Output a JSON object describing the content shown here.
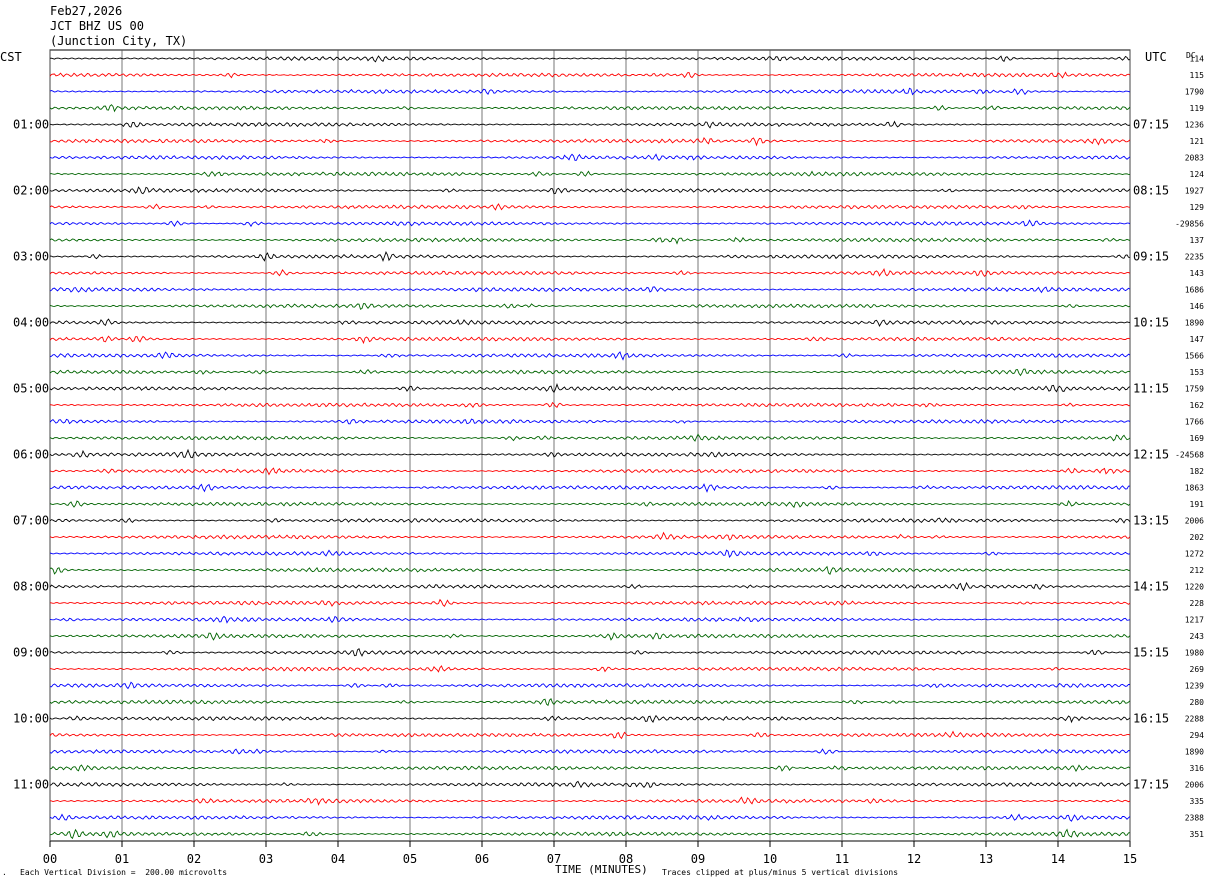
{
  "header": {
    "date": "Feb27,2026",
    "station": "JCT BHZ US 00",
    "location": "(Junction City, TX)"
  },
  "left_axis_title": "CST",
  "right_axis_title": "UTC",
  "dc_label": "DC",
  "footer": {
    "scale_note": "Each Vertical Division =  200.00 microvolts",
    "xlabel": "TIME (MINUTES)",
    "clip_note": "Traces clipped at plus/minus 5 vertical divisions",
    "corner_mark": "."
  },
  "colors": [
    "#000000",
    "#ff0000",
    "#0000ff",
    "#006400"
  ],
  "chart_data": {
    "type": "line",
    "title": "",
    "xlabel": "TIME (MINUTES)",
    "xlim": [
      0,
      15
    ],
    "x_ticks": [
      "00",
      "01",
      "02",
      "03",
      "04",
      "05",
      "06",
      "07",
      "08",
      "09",
      "10",
      "11",
      "12",
      "13",
      "14",
      "15"
    ],
    "grid": true,
    "trace_count": 48,
    "minutes_per_trace": 15,
    "left_time_labels": [
      "01:00",
      "02:00",
      "03:00",
      "04:00",
      "05:00",
      "06:00",
      "07:00",
      "08:00",
      "09:00",
      "10:00",
      "11:00"
    ],
    "right_time_labels": [
      "07:15",
      "08:15",
      "09:15",
      "10:15",
      "11:15",
      "12:15",
      "13:15",
      "14:15",
      "15:15",
      "16:15",
      "17:15"
    ],
    "dc_offsets": [
      "114",
      "115",
      "1790",
      "119",
      "1236",
      "121",
      "2083",
      "124",
      "1927",
      "129",
      "-29856",
      "137",
      "2235",
      "143",
      "1686",
      "146",
      "1890",
      "147",
      "1566",
      "153",
      "1759",
      "162",
      "1766",
      "169",
      "-24568",
      "182",
      "1863",
      "191",
      "2006",
      "202",
      "1272",
      "212",
      "1220",
      "228",
      "1217",
      "243",
      "1980",
      "269",
      "1239",
      "280",
      "2288",
      "294",
      "1890",
      "316",
      "2006",
      "335",
      "2388",
      "351"
    ]
  }
}
